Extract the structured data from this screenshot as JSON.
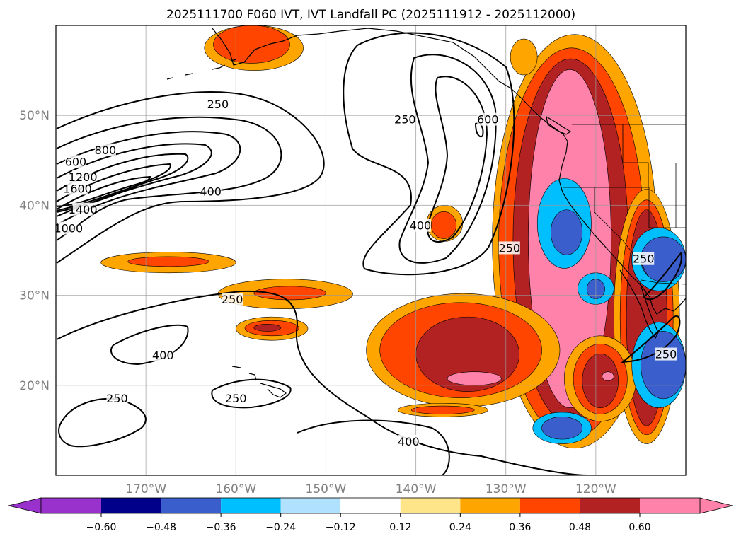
{
  "chart_data": {
    "type": "contour_map",
    "title": "2025111700 F060 IVT, IVT Landfall PC (2025111912 - 2025112000)",
    "lon_range": [
      -180,
      -110
    ],
    "lat_range": [
      10,
      60
    ],
    "x_ticks": [
      "170°W",
      "160°W",
      "150°W",
      "140°W",
      "130°W",
      "120°W"
    ],
    "x_tick_values": [
      -170,
      -160,
      -150,
      -140,
      -130,
      -120
    ],
    "y_ticks": [
      "20°N",
      "30°N",
      "40°N",
      "50°N"
    ],
    "y_tick_values": [
      20,
      30,
      40,
      50
    ],
    "grid": true,
    "ivt_contour_levels": [
      250,
      400,
      600,
      800,
      1000,
      1200,
      1400,
      1600
    ],
    "contour_labels": [
      {
        "text": "250",
        "lon": -162.0,
        "lat": 51.2
      },
      {
        "text": "600",
        "lon": -177.8,
        "lat": 44.8
      },
      {
        "text": "800",
        "lon": -174.5,
        "lat": 46.1
      },
      {
        "text": "1200",
        "lon": -177.0,
        "lat": 43.1
      },
      {
        "text": "1600",
        "lon": -177.6,
        "lat": 41.8
      },
      {
        "text": "1400",
        "lon": -177.0,
        "lat": 39.5
      },
      {
        "text": "1000",
        "lon": -178.6,
        "lat": 37.4
      },
      {
        "text": "400",
        "lon": -162.8,
        "lat": 41.5
      },
      {
        "text": "250",
        "lon": -141.2,
        "lat": 49.5
      },
      {
        "text": "600",
        "lon": -132.0,
        "lat": 49.5
      },
      {
        "text": "400",
        "lon": -139.5,
        "lat": 37.7
      },
      {
        "text": "250",
        "lon": -129.6,
        "lat": 35.2
      },
      {
        "text": "250",
        "lon": -160.4,
        "lat": 29.5
      },
      {
        "text": "400",
        "lon": -168.1,
        "lat": 23.3
      },
      {
        "text": "250",
        "lon": -160.0,
        "lat": 18.5
      },
      {
        "text": "250",
        "lon": -173.2,
        "lat": 18.5
      },
      {
        "text": "400",
        "lon": -140.8,
        "lat": 13.7
      },
      {
        "text": "250",
        "lon": -114.7,
        "lat": 34.0
      },
      {
        "text": "250",
        "lon": -112.2,
        "lat": 23.4
      }
    ],
    "colorbar": {
      "ticks": [
        "−0.60",
        "−0.48",
        "−0.36",
        "−0.24",
        "−0.12",
        "0.12",
        "0.24",
        "0.36",
        "0.48",
        "0.60"
      ],
      "tick_values": [
        -0.6,
        -0.48,
        -0.36,
        -0.24,
        -0.12,
        0.12,
        0.24,
        0.36,
        0.48,
        0.6
      ],
      "colors": [
        "#9932cc",
        "#00008b",
        "#3a5fcd",
        "#00bfff",
        "#b0e2ff",
        "#ffffff",
        "#ffe58a",
        "#ffa500",
        "#ff4500",
        "#b22222",
        "#ff82ab"
      ],
      "extend": "both"
    },
    "pc_regions": [
      {
        "level": 0.24,
        "lon": [
          -131.5,
          -113.2
        ],
        "lat": [
          13.0,
          59.0
        ]
      },
      {
        "level": 0.36,
        "lon": [
          -130.8,
          -114.6
        ],
        "lat": [
          14.1,
          57.5
        ]
      },
      {
        "level": 0.48,
        "lon": [
          -129.2,
          -116.4
        ],
        "lat": [
          15.8,
          56.3
        ]
      },
      {
        "level": 0.6,
        "lon": [
          -127.5,
          -118.3
        ],
        "lat": [
          17.5,
          55.1
        ]
      },
      {
        "level": 0.24,
        "lon": [
          -118.0,
          -110.7
        ],
        "lat": [
          13.5,
          41.8
        ]
      },
      {
        "level": 0.36,
        "lon": [
          -117.3,
          -111.4
        ],
        "lat": [
          14.5,
          40.6
        ]
      },
      {
        "level": 0.48,
        "lon": [
          -116.6,
          -112.1
        ],
        "lat": [
          15.5,
          39.5
        ]
      },
      {
        "level": 0.24,
        "lon": [
          -145.5,
          -124.0
        ],
        "lat": [
          17.6,
          30.2
        ]
      },
      {
        "level": 0.36,
        "lon": [
          -144.0,
          -126.0
        ],
        "lat": [
          18.6,
          29.2
        ]
      },
      {
        "level": 0.48,
        "lon": [
          -140.0,
          -128.5
        ],
        "lat": [
          19.3,
          27.6
        ]
      },
      {
        "level": 0.6,
        "lon": [
          -136.5,
          -130.5
        ],
        "lat": [
          20.0,
          21.5
        ]
      },
      {
        "level": 0.24,
        "lon": [
          -123.5,
          -115.5
        ],
        "lat": [
          16.0,
          25.5
        ]
      },
      {
        "level": 0.36,
        "lon": [
          -122.5,
          -116.5
        ],
        "lat": [
          16.8,
          24.6
        ]
      },
      {
        "level": 0.48,
        "lon": [
          -121.5,
          -117.5
        ],
        "lat": [
          17.5,
          23.5
        ]
      },
      {
        "level": 0.6,
        "lon": [
          -119.3,
          -118.0
        ],
        "lat": [
          20.5,
          21.5
        ]
      },
      {
        "level": 0.24,
        "lon": [
          -162.0,
          -147.0
        ],
        "lat": [
          28.5,
          31.8
        ]
      },
      {
        "level": 0.36,
        "lon": [
          -158.0,
          -150.0
        ],
        "lat": [
          29.5,
          31.0
        ]
      },
      {
        "level": 0.24,
        "lon": [
          -175.0,
          -160.0
        ],
        "lat": [
          32.5,
          34.8
        ]
      },
      {
        "level": 0.36,
        "lon": [
          -172.0,
          -163.0
        ],
        "lat": [
          33.2,
          34.3
        ]
      },
      {
        "level": 0.24,
        "lon": [
          -160.0,
          -152.0
        ],
        "lat": [
          25.0,
          27.6
        ]
      },
      {
        "level": 0.36,
        "lon": [
          -159.0,
          -153.0
        ],
        "lat": [
          25.5,
          27.2
        ]
      },
      {
        "level": 0.48,
        "lon": [
          -158.0,
          -155.0
        ],
        "lat": [
          26.0,
          26.8
        ]
      },
      {
        "level": 0.24,
        "lon": [
          -142.0,
          -132.0
        ],
        "lat": [
          16.5,
          18.0
        ]
      },
      {
        "level": 0.36,
        "lon": [
          -140.5,
          -133.5
        ],
        "lat": [
          16.8,
          17.7
        ]
      },
      {
        "level": 0.24,
        "lon": [
          -163.5,
          -152.5
        ],
        "lat": [
          55.0,
          60.0
        ]
      },
      {
        "level": 0.36,
        "lon": [
          -162.5,
          -154.0
        ],
        "lat": [
          55.8,
          60.0
        ]
      },
      {
        "level": 0.24,
        "lon": [
          -129.5,
          -126.5
        ],
        "lat": [
          54.5,
          58.5
        ]
      },
      {
        "level": 0.24,
        "lon": [
          -138.8,
          -134.8
        ],
        "lat": [
          36.0,
          40.0
        ]
      },
      {
        "level": 0.36,
        "lon": [
          -138.3,
          -135.5
        ],
        "lat": [
          36.3,
          39.3
        ]
      },
      {
        "level": -0.24,
        "lon": [
          -127.0,
          -120.5
        ],
        "lat": [
          13.5,
          17.0
        ]
      },
      {
        "level": -0.36,
        "lon": [
          -126.0,
          -121.5
        ],
        "lat": [
          14.0,
          16.5
        ]
      },
      {
        "level": -0.24,
        "lon": [
          -116.0,
          -110.0
        ],
        "lat": [
          17.5,
          27.0
        ]
      },
      {
        "level": -0.36,
        "lon": [
          -115.0,
          -110.0
        ],
        "lat": [
          18.5,
          26.0
        ]
      },
      {
        "level": -0.24,
        "lon": [
          -116.0,
          -110.0
        ],
        "lat": [
          30.5,
          37.5
        ]
      },
      {
        "level": -0.36,
        "lon": [
          -115.0,
          -110.0
        ],
        "lat": [
          31.5,
          36.5
        ]
      },
      {
        "level": -0.24,
        "lon": [
          -126.5,
          -120.5
        ],
        "lat": [
          33.0,
          43.0
        ]
      },
      {
        "level": -0.36,
        "lon": [
          -125.0,
          -121.5
        ],
        "lat": [
          34.5,
          39.5
        ]
      },
      {
        "level": -0.24,
        "lon": [
          -122.0,
          -118.0
        ],
        "lat": [
          29.0,
          32.5
        ]
      },
      {
        "level": -0.36,
        "lon": [
          -121.0,
          -119.0
        ],
        "lat": [
          29.6,
          31.8
        ]
      }
    ]
  }
}
